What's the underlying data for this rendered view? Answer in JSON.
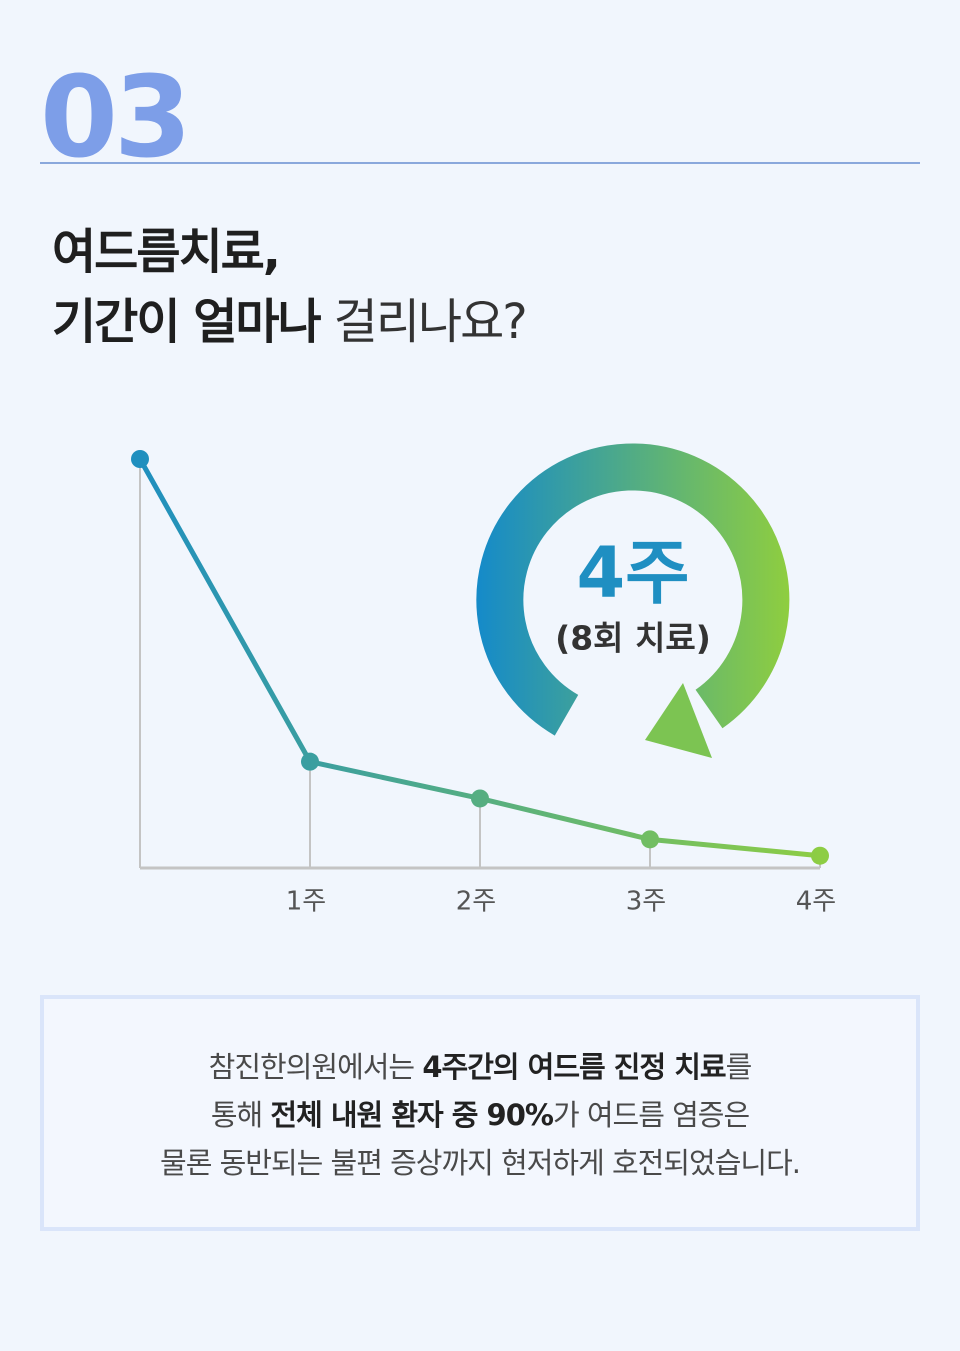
{
  "header": {
    "number": "03",
    "title_line1": "여드름치료,",
    "title_line2_bold": "기간이 얼마나",
    "title_line2_light": "걸리나요?"
  },
  "chart_data": {
    "type": "line",
    "categories": [
      null,
      "1주",
      "2주",
      "3주",
      "4주"
    ],
    "values": [
      100,
      26,
      17,
      7,
      3
    ],
    "ylim": [
      0,
      100
    ],
    "color_start": "#1f8fbf",
    "color_end": "#8dcd44",
    "badge": {
      "title": "4주",
      "subtitle": "(8회 치료)"
    }
  },
  "note": {
    "lines": [
      [
        "참진한의원에서는 ",
        "4주간의 여드름 진정 치료",
        "를"
      ],
      [
        "통해 ",
        "전체 내원 환자 중 90%",
        "가 여드름 염증은"
      ],
      [
        "물론 동반되는 불편 증상까지 현저하게 호전되었습니다."
      ]
    ]
  }
}
